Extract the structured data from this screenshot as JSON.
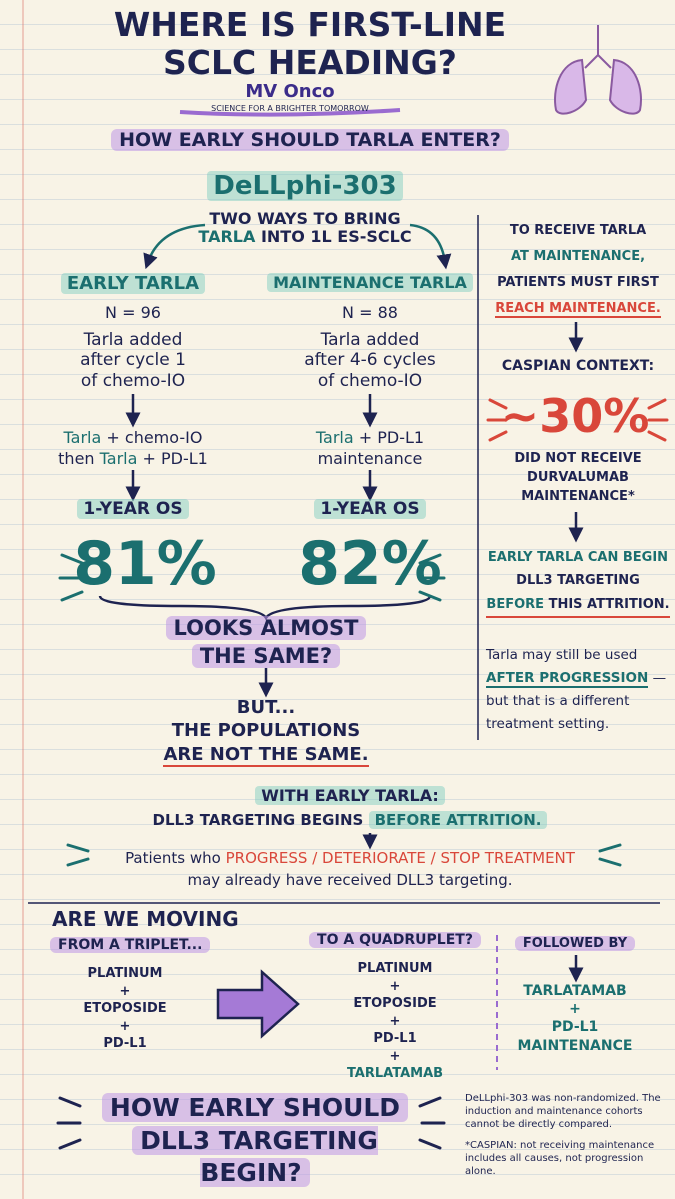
{
  "header": {
    "title": [
      "WHERE IS FIRST-LINE",
      "SCLC HEADING?"
    ],
    "brand": "MV Onco",
    "tagline": "SCIENCE FOR A BRIGHTER TOMORROW",
    "question": "HOW EARLY SHOULD TARLA ENTER?"
  },
  "study": {
    "name": "DeLLphi-303",
    "intro": [
      "TWO WAYS TO BRING",
      "TARLA",
      "INTO 1L ES-SCLC"
    ]
  },
  "arms": [
    {
      "label": "EARLY TARLA",
      "n": "N = 96",
      "description": [
        "Tarla added",
        "after cycle 1",
        "of chemo-IO"
      ],
      "regimen": [
        "Tarla",
        "+ chemo-IO",
        "then",
        "Tarla",
        "+ PD-L1"
      ],
      "os_label": "1-YEAR OS",
      "os_value": "81%"
    },
    {
      "label": "MAINTENANCE TARLA",
      "n": "N = 88",
      "description": [
        "Tarla added",
        "after 4-6 cycles",
        "of chemo-IO"
      ],
      "regimen": [
        "Tarla",
        "+ PD-L1",
        "maintenance"
      ],
      "os_label": "1-YEAR OS",
      "os_value": "82%"
    }
  ],
  "comparison": [
    "LOOKS ALMOST",
    "THE SAME?",
    "BUT...",
    "THE POPULATIONS",
    "ARE NOT THE SAME."
  ],
  "side_panel": {
    "lines": [
      "TO RECEIVE TARLA",
      "AT MAINTENANCE,",
      "PATIENTS MUST FIRST",
      "REACH MAINTENANCE."
    ],
    "context": "CASPIAN CONTEXT:",
    "stat": "~30%",
    "stat_text": [
      "DID NOT RECEIVE",
      "DURVALUMAB",
      "MAINTENANCE*"
    ],
    "early": [
      "EARLY TARLA CAN BEGIN",
      "DLL3 TARGETING",
      "BEFORE",
      "THIS ATTRITION."
    ],
    "note": [
      "Tarla may still be used",
      "AFTER PROGRESSION",
      "—",
      "but that is a different",
      "treatment setting."
    ]
  },
  "early_box": {
    "heading": "WITH EARLY TARLA:",
    "line": [
      "DLL3 TARGETING BEGINS",
      "BEFORE ATTRITION."
    ],
    "patients": [
      "Patients who",
      "PROGRESS / DETERIORATE / STOP TREATMENT",
      "may already have received DLL3 targeting."
    ]
  },
  "regimens": {
    "question": "ARE WE MOVING",
    "triplet": {
      "label": "FROM A TRIPLET...",
      "items": [
        "PLATINUM",
        "+",
        "ETOPOSIDE",
        "+",
        "PD-L1"
      ]
    },
    "quadruplet": {
      "label": "TO A QUADRUPLET?",
      "items": [
        "PLATINUM",
        "+",
        "ETOPOSIDE",
        "+",
        "PD-L1",
        "+",
        "TARLATAMAB"
      ]
    },
    "followed": {
      "label": "FOLLOWED BY",
      "items": [
        "TARLATAMAB",
        "+",
        "PD-L1",
        "MAINTENANCE"
      ]
    }
  },
  "footer": {
    "question": [
      "HOW EARLY SHOULD",
      "DLL3 TARGETING BEGIN?"
    ],
    "notes": [
      "DeLLphi-303 was non-randomized. The induction and maintenance cohorts cannot be directly compared.",
      "*CASPIAN: not receiving maintenance includes all causes, not progression alone."
    ]
  }
}
